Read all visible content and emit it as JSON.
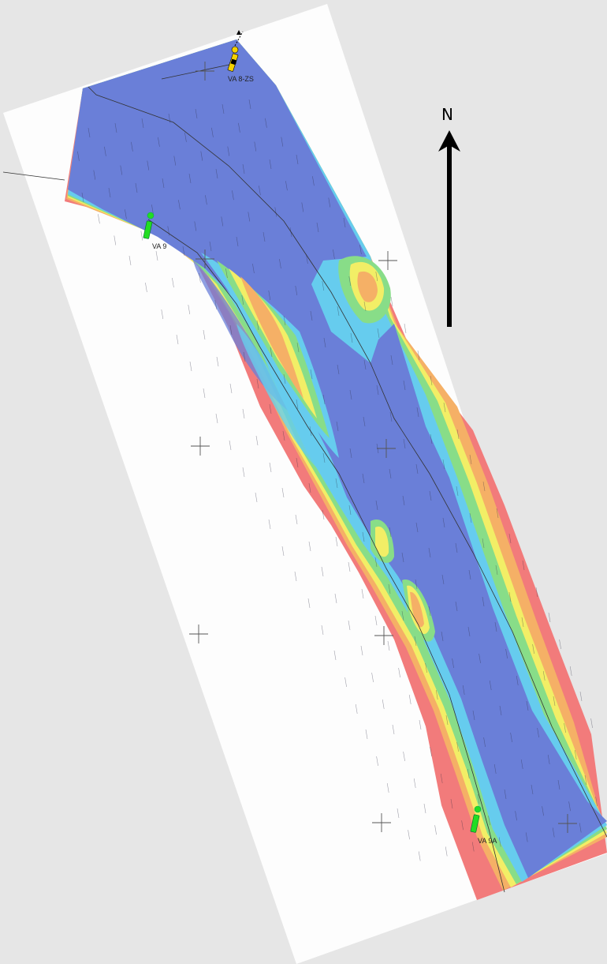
{
  "compass": {
    "label": "N"
  },
  "buoys": [
    {
      "id": "VA 8-ZS",
      "type": "cardinal",
      "color": "#f5d200"
    },
    {
      "id": "VA 9",
      "type": "lateral",
      "color": "#22dd22"
    },
    {
      "id": "VA 9A",
      "type": "lateral",
      "color": "#22dd22"
    }
  ],
  "depth_colors": {
    "deep": "#6a7fd8",
    "mid_deep": "#66ccee",
    "mid": "#88dd88",
    "shallow_mid": "#f2ee66",
    "shallow": "#f5b066",
    "very_shallow": "#f27b7b"
  },
  "sheet_color": "#fdfdfd",
  "background_color": "#e6e6e6"
}
